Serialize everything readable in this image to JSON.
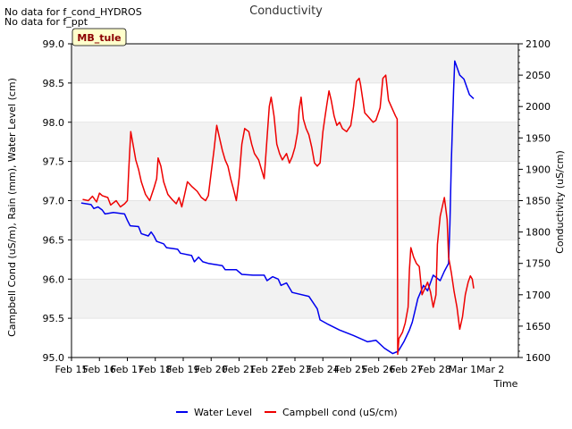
{
  "notes": [
    "No data for f_cond_HYDROS",
    "No data for f_ppt"
  ],
  "badge": "MB_tule",
  "colors": {
    "water": "#0000ee",
    "cond": "#ee0000",
    "band": "#f2f2f2",
    "grid": "#dddddd",
    "badge_bg": "#ffffcc",
    "badge_text": "#8b0000"
  },
  "chart_data": {
    "type": "line",
    "title": "Conductivity",
    "xlabel": "Time",
    "ylabel_left": "Campbell Cond (uS/m), Rain (mm), Water Level (cm)",
    "ylabel_right": "Conductivity (uS/cm)",
    "x_range_days": [
      0,
      16
    ],
    "x_ticks": [
      {
        "day": 0,
        "label": "Feb 15"
      },
      {
        "day": 1,
        "label": "Feb 16"
      },
      {
        "day": 2,
        "label": "Feb 17"
      },
      {
        "day": 3,
        "label": "Feb 18"
      },
      {
        "day": 4,
        "label": "Feb 19"
      },
      {
        "day": 5,
        "label": "Feb 20"
      },
      {
        "day": 6,
        "label": "Feb 21"
      },
      {
        "day": 7,
        "label": "Feb 22"
      },
      {
        "day": 8,
        "label": "Feb 23"
      },
      {
        "day": 9,
        "label": "Feb 24"
      },
      {
        "day": 10,
        "label": "Feb 25"
      },
      {
        "day": 11,
        "label": "Feb 26"
      },
      {
        "day": 12,
        "label": "Feb 27"
      },
      {
        "day": 13,
        "label": "Feb 28"
      },
      {
        "day": 14,
        "label": "Mar 1"
      },
      {
        "day": 15,
        "label": "Mar 2"
      }
    ],
    "y_left_range": [
      95.0,
      99.0
    ],
    "y_left_ticks": [
      "95.0",
      "95.5",
      "96.0",
      "96.5",
      "97.0",
      "97.5",
      "98.0",
      "98.5",
      "99.0"
    ],
    "y_right_range": [
      1600,
      2100
    ],
    "y_right_ticks": [
      "1600",
      "1650",
      "1700",
      "1750",
      "1800",
      "1850",
      "1900",
      "1950",
      "2000",
      "2050",
      "2100"
    ],
    "series": [
      {
        "name": "Water Level",
        "axis": "left",
        "points": [
          [
            0.35,
            96.97
          ],
          [
            0.7,
            96.95
          ],
          [
            0.8,
            96.9
          ],
          [
            0.95,
            96.92
          ],
          [
            1.1,
            96.88
          ],
          [
            1.2,
            96.83
          ],
          [
            1.5,
            96.85
          ],
          [
            1.9,
            96.83
          ],
          [
            2.0,
            96.75
          ],
          [
            2.1,
            96.68
          ],
          [
            2.4,
            96.67
          ],
          [
            2.5,
            96.58
          ],
          [
            2.75,
            96.55
          ],
          [
            2.85,
            96.6
          ],
          [
            2.95,
            96.55
          ],
          [
            3.05,
            96.48
          ],
          [
            3.3,
            96.45
          ],
          [
            3.4,
            96.4
          ],
          [
            3.8,
            96.38
          ],
          [
            3.9,
            96.33
          ],
          [
            4.3,
            96.3
          ],
          [
            4.4,
            96.22
          ],
          [
            4.55,
            96.28
          ],
          [
            4.7,
            96.22
          ],
          [
            4.9,
            96.2
          ],
          [
            5.4,
            96.17
          ],
          [
            5.5,
            96.12
          ],
          [
            5.9,
            96.12
          ],
          [
            6.1,
            96.06
          ],
          [
            6.5,
            96.05
          ],
          [
            6.9,
            96.05
          ],
          [
            7.0,
            95.98
          ],
          [
            7.2,
            96.03
          ],
          [
            7.4,
            96.0
          ],
          [
            7.5,
            95.92
          ],
          [
            7.7,
            95.95
          ],
          [
            7.9,
            95.83
          ],
          [
            8.5,
            95.78
          ],
          [
            8.8,
            95.62
          ],
          [
            8.9,
            95.48
          ],
          [
            9.2,
            95.42
          ],
          [
            9.6,
            95.35
          ],
          [
            10.1,
            95.28
          ],
          [
            10.6,
            95.2
          ],
          [
            10.9,
            95.22
          ],
          [
            11.2,
            95.12
          ],
          [
            11.5,
            95.05
          ],
          [
            11.7,
            95.08
          ],
          [
            11.9,
            95.2
          ],
          [
            12.1,
            95.35
          ],
          [
            12.2,
            95.45
          ],
          [
            12.3,
            95.6
          ],
          [
            12.4,
            95.75
          ],
          [
            12.6,
            95.92
          ],
          [
            12.75,
            95.85
          ],
          [
            12.95,
            96.05
          ],
          [
            13.2,
            95.98
          ],
          [
            13.35,
            96.1
          ],
          [
            13.5,
            96.2
          ],
          [
            13.55,
            96.7
          ],
          [
            13.6,
            97.5
          ],
          [
            13.68,
            98.4
          ],
          [
            13.72,
            98.78
          ],
          [
            13.8,
            98.7
          ],
          [
            13.9,
            98.6
          ],
          [
            14.05,
            98.55
          ],
          [
            14.15,
            98.45
          ],
          [
            14.25,
            98.35
          ],
          [
            14.4,
            98.3
          ]
        ]
      },
      {
        "name": "Campbell cond (uS/cm)",
        "axis": "right",
        "points": [
          [
            0.4,
            1852
          ],
          [
            0.6,
            1850
          ],
          [
            0.75,
            1857
          ],
          [
            0.9,
            1848
          ],
          [
            1.0,
            1862
          ],
          [
            1.1,
            1858
          ],
          [
            1.3,
            1855
          ],
          [
            1.4,
            1843
          ],
          [
            1.6,
            1850
          ],
          [
            1.75,
            1840
          ],
          [
            1.9,
            1845
          ],
          [
            2.0,
            1850
          ],
          [
            2.05,
            1900
          ],
          [
            2.12,
            1960
          ],
          [
            2.2,
            1940
          ],
          [
            2.3,
            1915
          ],
          [
            2.4,
            1900
          ],
          [
            2.5,
            1880
          ],
          [
            2.65,
            1860
          ],
          [
            2.8,
            1850
          ],
          [
            2.95,
            1870
          ],
          [
            3.05,
            1885
          ],
          [
            3.1,
            1918
          ],
          [
            3.2,
            1905
          ],
          [
            3.3,
            1880
          ],
          [
            3.45,
            1860
          ],
          [
            3.6,
            1852
          ],
          [
            3.75,
            1845
          ],
          [
            3.85,
            1855
          ],
          [
            3.95,
            1840
          ],
          [
            4.05,
            1860
          ],
          [
            4.15,
            1880
          ],
          [
            4.3,
            1873
          ],
          [
            4.5,
            1865
          ],
          [
            4.65,
            1855
          ],
          [
            4.8,
            1850
          ],
          [
            4.9,
            1858
          ],
          [
            5.0,
            1895
          ],
          [
            5.1,
            1930
          ],
          [
            5.2,
            1970
          ],
          [
            5.3,
            1950
          ],
          [
            5.4,
            1930
          ],
          [
            5.5,
            1915
          ],
          [
            5.6,
            1905
          ],
          [
            5.7,
            1885
          ],
          [
            5.8,
            1868
          ],
          [
            5.9,
            1850
          ],
          [
            6.0,
            1885
          ],
          [
            6.1,
            1940
          ],
          [
            6.2,
            1965
          ],
          [
            6.35,
            1960
          ],
          [
            6.45,
            1940
          ],
          [
            6.55,
            1925
          ],
          [
            6.7,
            1915
          ],
          [
            6.8,
            1900
          ],
          [
            6.9,
            1885
          ],
          [
            7.0,
            1950
          ],
          [
            7.08,
            2000
          ],
          [
            7.15,
            2015
          ],
          [
            7.25,
            1985
          ],
          [
            7.35,
            1940
          ],
          [
            7.45,
            1925
          ],
          [
            7.55,
            1915
          ],
          [
            7.7,
            1925
          ],
          [
            7.8,
            1910
          ],
          [
            7.9,
            1920
          ],
          [
            8.0,
            1935
          ],
          [
            8.1,
            1960
          ],
          [
            8.15,
            1995
          ],
          [
            8.22,
            2015
          ],
          [
            8.3,
            1980
          ],
          [
            8.4,
            1965
          ],
          [
            8.5,
            1955
          ],
          [
            8.6,
            1935
          ],
          [
            8.7,
            1910
          ],
          [
            8.8,
            1905
          ],
          [
            8.9,
            1910
          ],
          [
            9.0,
            1960
          ],
          [
            9.08,
            1985
          ],
          [
            9.15,
            2005
          ],
          [
            9.22,
            2025
          ],
          [
            9.3,
            2010
          ],
          [
            9.4,
            1985
          ],
          [
            9.5,
            1970
          ],
          [
            9.6,
            1975
          ],
          [
            9.7,
            1965
          ],
          [
            9.85,
            1960
          ],
          [
            10.0,
            1970
          ],
          [
            10.1,
            2000
          ],
          [
            10.2,
            2040
          ],
          [
            10.3,
            2045
          ],
          [
            10.35,
            2035
          ],
          [
            10.5,
            1990
          ],
          [
            10.6,
            1985
          ],
          [
            10.7,
            1980
          ],
          [
            10.8,
            1975
          ],
          [
            10.9,
            1978
          ],
          [
            11.05,
            1998
          ],
          [
            11.15,
            2045
          ],
          [
            11.25,
            2050
          ],
          [
            11.35,
            2010
          ],
          [
            11.45,
            2000
          ],
          [
            11.6,
            1985
          ],
          [
            11.66,
            1980
          ],
          [
            11.68,
            1605
          ],
          [
            11.72,
            1630
          ],
          [
            11.85,
            1640
          ],
          [
            11.95,
            1655
          ],
          [
            12.05,
            1680
          ],
          [
            12.1,
            1740
          ],
          [
            12.15,
            1775
          ],
          [
            12.25,
            1760
          ],
          [
            12.35,
            1750
          ],
          [
            12.45,
            1745
          ],
          [
            12.55,
            1700
          ],
          [
            12.65,
            1710
          ],
          [
            12.75,
            1720
          ],
          [
            12.85,
            1705
          ],
          [
            12.95,
            1680
          ],
          [
            13.05,
            1700
          ],
          [
            13.1,
            1780
          ],
          [
            13.2,
            1825
          ],
          [
            13.3,
            1845
          ],
          [
            13.35,
            1855
          ],
          [
            13.45,
            1820
          ],
          [
            13.5,
            1760
          ],
          [
            13.6,
            1735
          ],
          [
            13.7,
            1705
          ],
          [
            13.8,
            1680
          ],
          [
            13.9,
            1645
          ],
          [
            14.0,
            1665
          ],
          [
            14.1,
            1700
          ],
          [
            14.2,
            1720
          ],
          [
            14.28,
            1730
          ],
          [
            14.35,
            1725
          ],
          [
            14.4,
            1710
          ]
        ]
      }
    ],
    "legend": [
      {
        "label": "Water Level",
        "color": "#0000ee"
      },
      {
        "label": "Campbell cond (uS/cm)",
        "color": "#ee0000"
      }
    ],
    "legend_position": "bottom-center",
    "grid": true
  }
}
